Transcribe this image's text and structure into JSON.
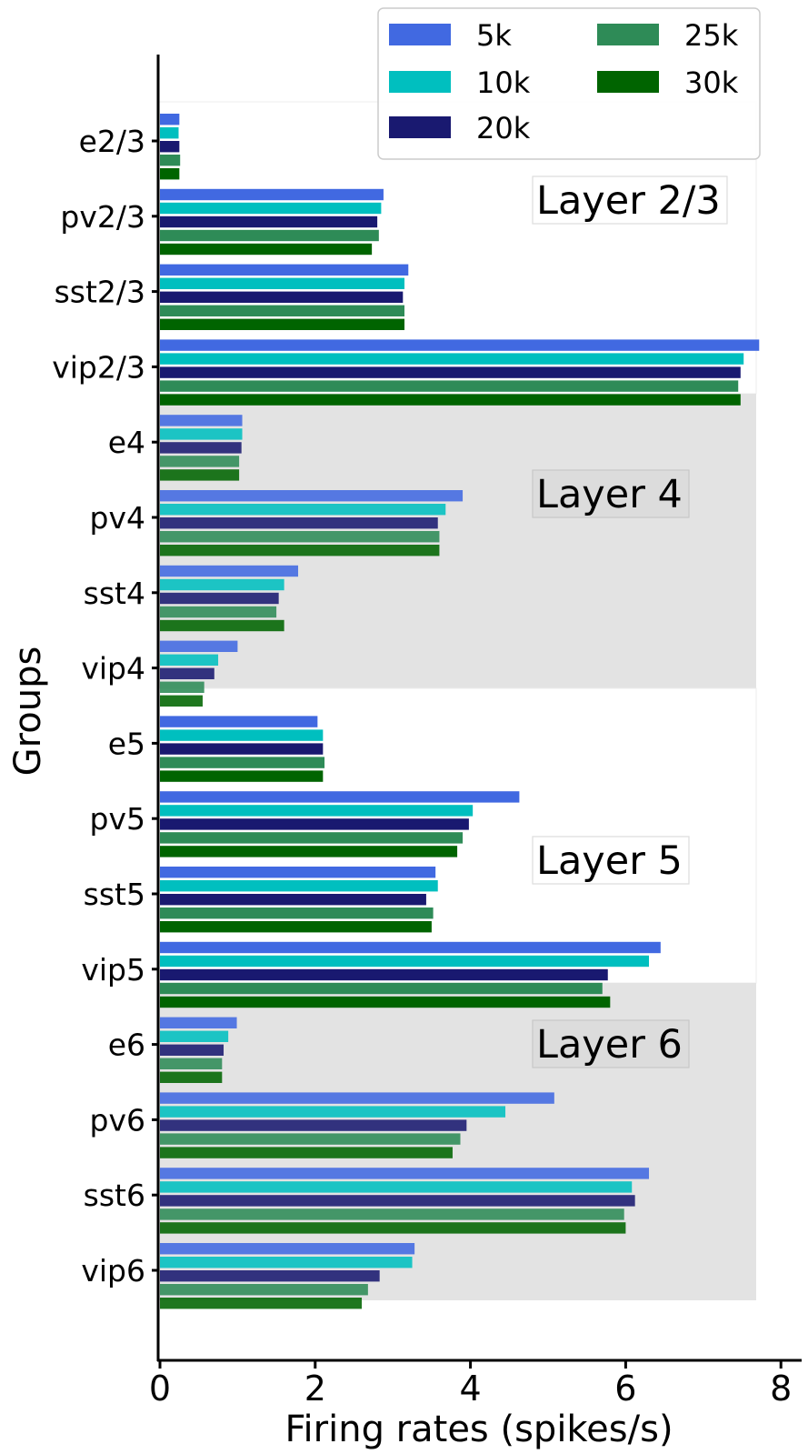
{
  "chart_data": {
    "type": "bar",
    "orientation": "horizontal",
    "xlabel": "Firing rates (spikes/s)",
    "ylabel": "Groups",
    "xlim": [
      0,
      8.3
    ],
    "xticks": [
      "0",
      "2",
      "4",
      "6",
      "8"
    ],
    "categories": [
      "e2/3",
      "pv2/3",
      "sst2/3",
      "vip2/3",
      "e4",
      "pv4",
      "sst4",
      "vip4",
      "e5",
      "pv5",
      "sst5",
      "vip5",
      "e6",
      "pv6",
      "sst6",
      "vip6"
    ],
    "series": [
      {
        "name": "5k",
        "color": "#4169e1",
        "values": [
          0.25,
          2.88,
          3.2,
          7.72,
          1.06,
          3.9,
          1.78,
          1.0,
          2.03,
          4.63,
          3.55,
          6.45,
          0.99,
          5.08,
          6.3,
          3.28
        ]
      },
      {
        "name": "10k",
        "color": "#00bfbf",
        "values": [
          0.24,
          2.85,
          3.15,
          7.52,
          1.06,
          3.68,
          1.6,
          0.75,
          2.1,
          4.03,
          3.58,
          6.3,
          0.88,
          4.45,
          6.08,
          3.25
        ]
      },
      {
        "name": "20k",
        "color": "#191970",
        "values": [
          0.25,
          2.8,
          3.13,
          7.48,
          1.05,
          3.58,
          1.53,
          0.7,
          2.1,
          3.98,
          3.43,
          5.77,
          0.82,
          3.95,
          6.12,
          2.83
        ]
      },
      {
        "name": "25k",
        "color": "#2e8b57",
        "values": [
          0.26,
          2.82,
          3.15,
          7.45,
          1.02,
          3.6,
          1.5,
          0.57,
          2.12,
          3.9,
          3.52,
          5.7,
          0.8,
          3.87,
          5.98,
          2.68
        ]
      },
      {
        "name": "30k",
        "color": "#006400",
        "values": [
          0.25,
          2.73,
          3.15,
          7.48,
          1.02,
          3.6,
          1.6,
          0.55,
          2.1,
          3.83,
          3.5,
          5.8,
          0.8,
          3.77,
          6.0,
          2.6
        ]
      }
    ],
    "legend_position": "top-right",
    "regions": [
      {
        "label": "Layer 2/3",
        "shaded": false
      },
      {
        "label": "Layer 4",
        "shaded": true
      },
      {
        "label": "Layer 5",
        "shaded": false
      },
      {
        "label": "Layer 6",
        "shaded": true
      }
    ],
    "shade_color": "#e3e3e3"
  }
}
